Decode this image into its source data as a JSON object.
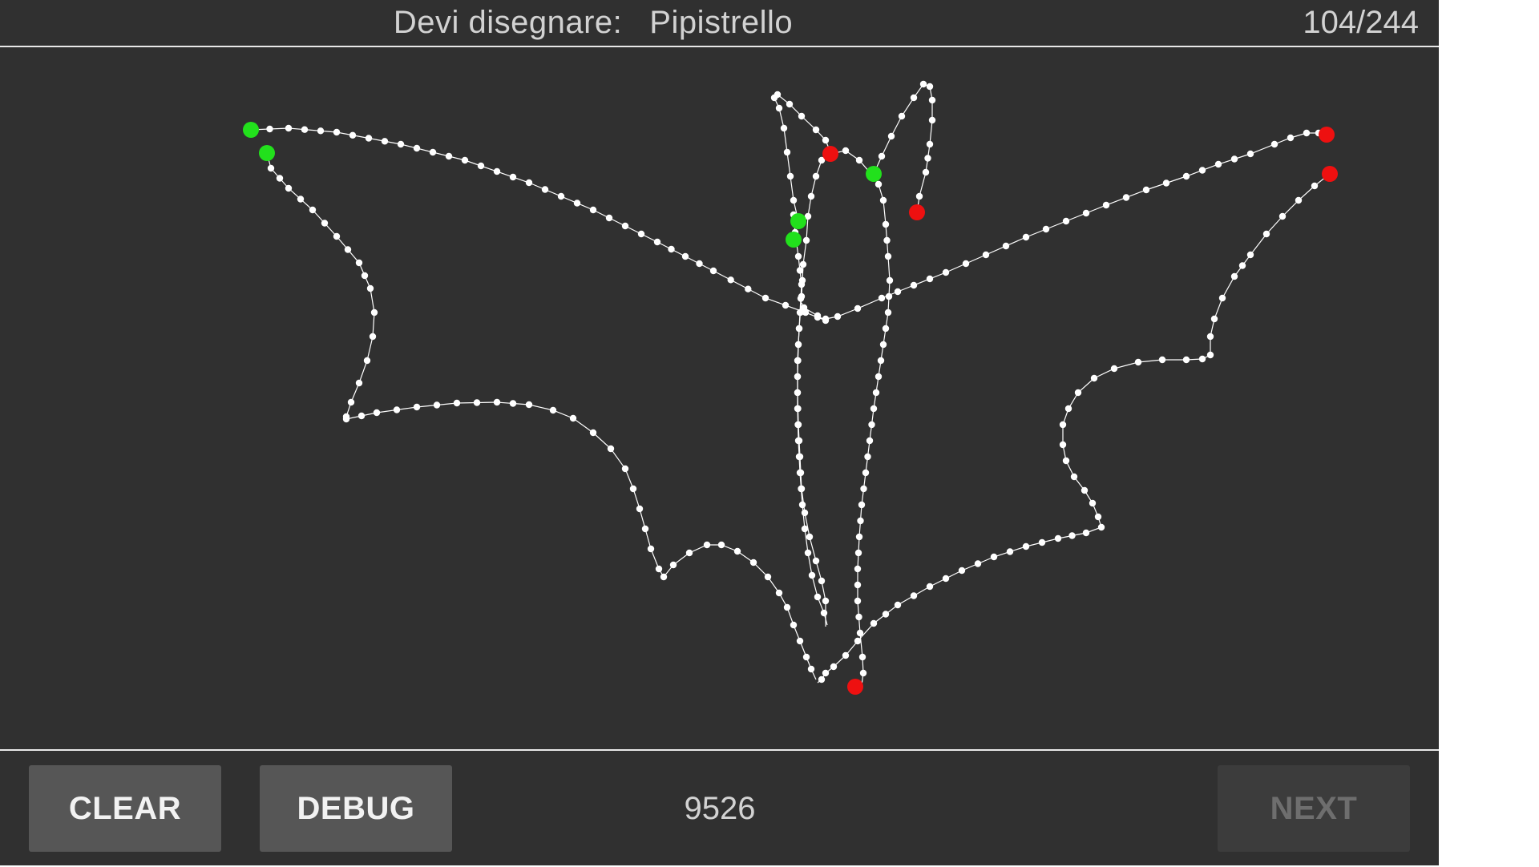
{
  "header": {
    "prompt_label": "Devi disegnare:",
    "target_word": "Pipistrello",
    "counter": "104/244"
  },
  "footer": {
    "clear_label": "CLEAR",
    "debug_label": "DEBUG",
    "score": "9526",
    "next_label": "NEXT"
  },
  "colors": {
    "background": "#303030",
    "stroke": "#ffffff",
    "start_point": "#22e01c",
    "end_point": "#ee1010",
    "button": "#565656",
    "button_disabled": "#3c3c3c"
  }
}
